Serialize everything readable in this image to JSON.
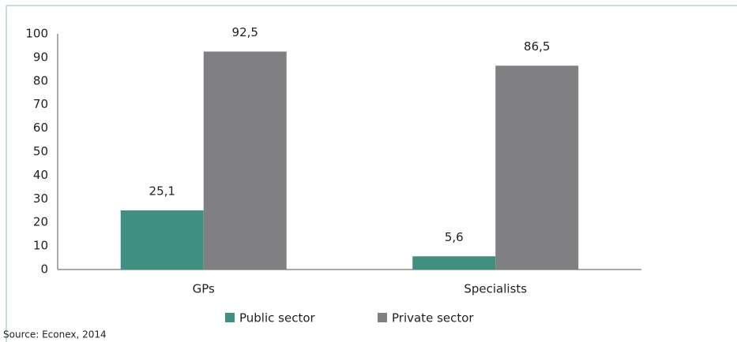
{
  "chart_data": {
    "type": "bar",
    "categories": [
      "GPs",
      "Specialists"
    ],
    "series": [
      {
        "name": "Public sector",
        "color": "#3f9080",
        "values": [
          25.1,
          5.6
        ],
        "value_labels": [
          "25,1",
          "5,6"
        ]
      },
      {
        "name": "Private sector",
        "color": "#808083",
        "values": [
          92.5,
          86.5
        ],
        "value_labels": [
          "92,5",
          "86,5"
        ]
      }
    ],
    "ylim": [
      0,
      100
    ],
    "yticks": [
      0,
      10,
      20,
      30,
      40,
      50,
      60,
      70,
      80,
      90,
      100
    ],
    "grid": false,
    "legend": "bottom",
    "source": "Source: Econex, 2014"
  }
}
